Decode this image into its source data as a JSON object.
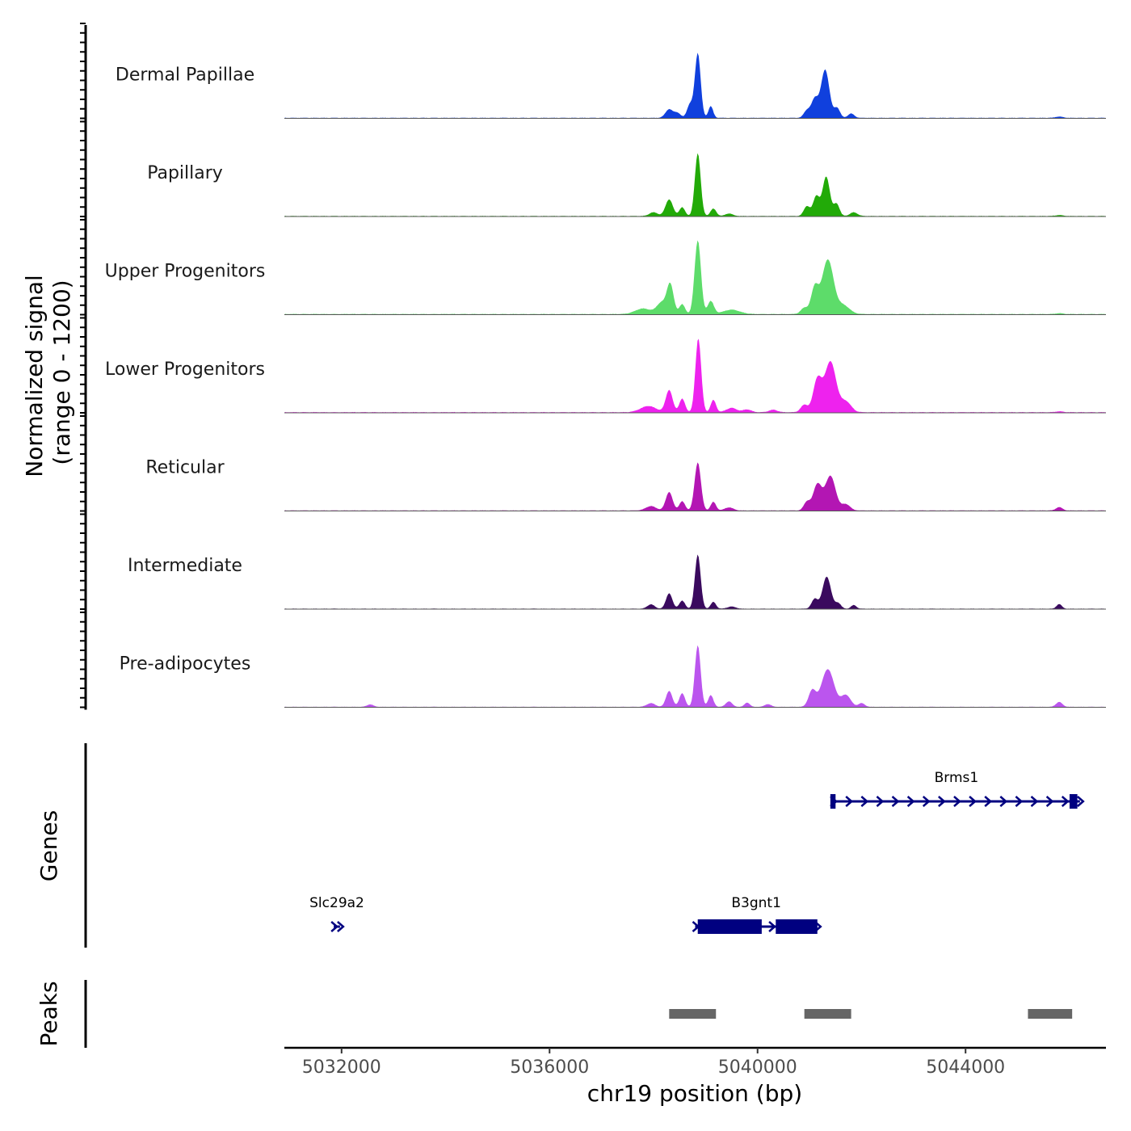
{
  "chart_data": {
    "type": "area",
    "title": "",
    "xlabel": "chr19 position (bp)",
    "ylabel_line1": "Normalized signal",
    "ylabel_line2": "(range 0 - 1200)",
    "xlim": [
      5030900,
      5046700
    ],
    "ylim": [
      0,
      1200
    ],
    "x_ticks": [
      {
        "value": 5032000,
        "label": "5032000"
      },
      {
        "value": 5036000,
        "label": "5036000"
      },
      {
        "value": 5040000,
        "label": "5040000"
      },
      {
        "value": 5044000,
        "label": "5044000"
      }
    ],
    "series": [
      {
        "name": "Dermal Papillae",
        "color": "#1040dd",
        "peaks": [
          [
            5038300,
            140,
            70
          ],
          [
            5038460,
            80,
            60
          ],
          [
            5038700,
            220,
            55
          ],
          [
            5038850,
            1050,
            55
          ],
          [
            5039100,
            190,
            45
          ],
          [
            5040950,
            120,
            60
          ],
          [
            5041100,
            300,
            65
          ],
          [
            5041300,
            780,
            80
          ],
          [
            5041530,
            160,
            55
          ],
          [
            5041800,
            70,
            60
          ],
          [
            5045800,
            20,
            70
          ]
        ],
        "baseline": 12
      },
      {
        "name": "Papillary",
        "color": "#22aa08",
        "peaks": [
          [
            5038000,
            60,
            80
          ],
          [
            5038300,
            270,
            70
          ],
          [
            5038550,
            140,
            55
          ],
          [
            5038850,
            1020,
            55
          ],
          [
            5039150,
            120,
            55
          ],
          [
            5039450,
            40,
            70
          ],
          [
            5040950,
            160,
            60
          ],
          [
            5041130,
            320,
            60
          ],
          [
            5041320,
            640,
            70
          ],
          [
            5041520,
            200,
            55
          ],
          [
            5041850,
            60,
            70
          ],
          [
            5045800,
            15,
            70
          ]
        ],
        "baseline": 12
      },
      {
        "name": "Upper Progenitors",
        "color": "#5ddc6a",
        "peaks": [
          [
            5037800,
            90,
            150
          ],
          [
            5038150,
            180,
            90
          ],
          [
            5038320,
            480,
            65
          ],
          [
            5038550,
            160,
            55
          ],
          [
            5038850,
            1200,
            60
          ],
          [
            5039100,
            210,
            60
          ],
          [
            5039500,
            70,
            160
          ],
          [
            5040900,
            100,
            70
          ],
          [
            5041100,
            420,
            70
          ],
          [
            5041350,
            880,
            110
          ],
          [
            5041650,
            140,
            120
          ],
          [
            5045800,
            15,
            70
          ]
        ],
        "baseline": 14
      },
      {
        "name": "Lower Progenitors",
        "color": "#ee22ee",
        "peaks": [
          [
            5037900,
            100,
            150
          ],
          [
            5038300,
            360,
            65
          ],
          [
            5038550,
            220,
            55
          ],
          [
            5038860,
            1200,
            55
          ],
          [
            5039150,
            200,
            50
          ],
          [
            5039500,
            70,
            100
          ],
          [
            5039800,
            45,
            80
          ],
          [
            5040300,
            40,
            80
          ],
          [
            5040900,
            120,
            70
          ],
          [
            5041150,
            520,
            80
          ],
          [
            5041400,
            820,
            110
          ],
          [
            5041700,
            170,
            100
          ],
          [
            5045800,
            15,
            70
          ]
        ],
        "baseline": 14
      },
      {
        "name": "Reticular",
        "color": "#b316b3",
        "peaks": [
          [
            5037950,
            70,
            100
          ],
          [
            5038300,
            300,
            65
          ],
          [
            5038550,
            150,
            55
          ],
          [
            5038850,
            780,
            60
          ],
          [
            5039150,
            140,
            50
          ],
          [
            5039450,
            50,
            80
          ],
          [
            5040950,
            140,
            60
          ],
          [
            5041150,
            420,
            80
          ],
          [
            5041400,
            560,
            100
          ],
          [
            5041700,
            100,
            80
          ],
          [
            5045800,
            55,
            60
          ]
        ],
        "baseline": 12
      },
      {
        "name": "Intermediate",
        "color": "#3a0a5e",
        "peaks": [
          [
            5037950,
            70,
            70
          ],
          [
            5038300,
            250,
            60
          ],
          [
            5038550,
            130,
            55
          ],
          [
            5038850,
            880,
            55
          ],
          [
            5039150,
            110,
            50
          ],
          [
            5039500,
            35,
            80
          ],
          [
            5041100,
            160,
            60
          ],
          [
            5041330,
            520,
            80
          ],
          [
            5041550,
            90,
            55
          ],
          [
            5041850,
            60,
            50
          ],
          [
            5045800,
            75,
            50
          ]
        ],
        "baseline": 10
      },
      {
        "name": "Pre-adipocytes",
        "color": "#bb55ee",
        "peaks": [
          [
            5032550,
            40,
            60
          ],
          [
            5037950,
            60,
            80
          ],
          [
            5038300,
            260,
            60
          ],
          [
            5038550,
            220,
            55
          ],
          [
            5038850,
            1000,
            55
          ],
          [
            5039100,
            190,
            50
          ],
          [
            5039450,
            90,
            60
          ],
          [
            5039800,
            70,
            50
          ],
          [
            5040200,
            45,
            60
          ],
          [
            5041050,
            260,
            70
          ],
          [
            5041350,
            610,
            120
          ],
          [
            5041700,
            190,
            90
          ],
          [
            5042000,
            60,
            60
          ],
          [
            5045800,
            80,
            60
          ]
        ],
        "baseline": 10
      }
    ],
    "genes_track_label": "Genes",
    "genes": [
      {
        "name": "Brms1",
        "color": "#000080",
        "strand": "+",
        "start": 5041450,
        "end": 5046200,
        "row": 1,
        "exons": [
          [
            5041400,
            5041500
          ],
          [
            5046000,
            5046150
          ]
        ]
      },
      {
        "name": "Slc29a2",
        "color": "#000080",
        "strand": "+",
        "start": 5031850,
        "end": 5031970,
        "row": 2,
        "exons": []
      },
      {
        "name": "B3gnt1",
        "color": "#000080",
        "strand": "+",
        "start": 5038800,
        "end": 5041150,
        "row": 2,
        "exons": [
          [
            5038850,
            5040080
          ],
          [
            5040350,
            5041150
          ]
        ]
      }
    ],
    "peaks_track_label": "Peaks",
    "peak_color": "#666666",
    "peak_regions": [
      [
        5038300,
        5039200
      ],
      [
        5040900,
        5041800
      ],
      [
        5045200,
        5046050
      ]
    ]
  }
}
